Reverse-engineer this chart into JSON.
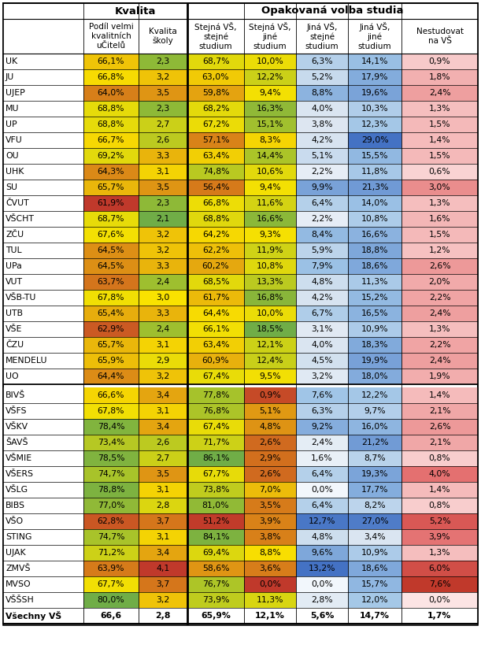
{
  "title_left": "Kvalita",
  "title_right": "Opakovaná volba studia",
  "col_headers": [
    "Podíl velmi\nkvalitních\nuČitelů",
    "Kvalita\nškoly",
    "Stejná VŠ,\nstejné\nstudium",
    "Stejná VŠ,\njiné\nstudium",
    "Jiná VŠ,\nstejné\nstudium",
    "Jiná VŠ,\njiné\nstudium",
    "Nestudovat\nna VŠ"
  ],
  "rows": [
    [
      "UK",
      "66,1%",
      "2,3",
      "68,7%",
      "10,0%",
      "6,3%",
      "14,1%",
      "0,9%"
    ],
    [
      "JU",
      "66,8%",
      "3,2",
      "63,0%",
      "12,2%",
      "5,2%",
      "17,9%",
      "1,8%"
    ],
    [
      "UJEP",
      "64,0%",
      "3,5",
      "59,8%",
      "9,4%",
      "8,8%",
      "19,6%",
      "2,4%"
    ],
    [
      "MU",
      "68,8%",
      "2,3",
      "68,2%",
      "16,3%",
      "4,0%",
      "10,3%",
      "1,3%"
    ],
    [
      "UP",
      "68,8%",
      "2,7",
      "67,2%",
      "15,1%",
      "3,8%",
      "12,3%",
      "1,5%"
    ],
    [
      "VFU",
      "66,7%",
      "2,6",
      "57,1%",
      "8,3%",
      "4,2%",
      "29,0%",
      "1,4%"
    ],
    [
      "OU",
      "69,2%",
      "3,3",
      "63,4%",
      "14,4%",
      "5,1%",
      "15,5%",
      "1,5%"
    ],
    [
      "UHK",
      "64,3%",
      "3,1",
      "74,8%",
      "10,6%",
      "2,2%",
      "11,8%",
      "0,6%"
    ],
    [
      "SU",
      "65,7%",
      "3,5",
      "56,4%",
      "9,4%",
      "9,9%",
      "21,3%",
      "3,0%"
    ],
    [
      "ČVUT",
      "61,9%",
      "2,3",
      "66,8%",
      "11,6%",
      "6,4%",
      "14,0%",
      "1,3%"
    ],
    [
      "VŠCHT",
      "68,7%",
      "2,1",
      "68,8%",
      "16,6%",
      "2,2%",
      "10,8%",
      "1,6%"
    ],
    [
      "ZČU",
      "67,6%",
      "3,2",
      "64,2%",
      "9,3%",
      "8,4%",
      "16,6%",
      "1,5%"
    ],
    [
      "TUL",
      "64,5%",
      "3,2",
      "62,2%",
      "11,9%",
      "5,9%",
      "18,8%",
      "1,2%"
    ],
    [
      "UPa",
      "64,5%",
      "3,3",
      "60,2%",
      "10,8%",
      "7,9%",
      "18,6%",
      "2,6%"
    ],
    [
      "VUT",
      "63,7%",
      "2,4",
      "68,5%",
      "13,3%",
      "4,8%",
      "11,3%",
      "2,0%"
    ],
    [
      "VŠB-TU",
      "67,8%",
      "3,0",
      "61,7%",
      "16,8%",
      "4,2%",
      "15,2%",
      "2,2%"
    ],
    [
      "UTB",
      "65,4%",
      "3,3",
      "64,4%",
      "10,0%",
      "6,7%",
      "16,5%",
      "2,4%"
    ],
    [
      "VŠE",
      "62,9%",
      "2,4",
      "66,1%",
      "18,5%",
      "3,1%",
      "10,9%",
      "1,3%"
    ],
    [
      "ČZU",
      "65,7%",
      "3,1",
      "63,4%",
      "12,1%",
      "4,0%",
      "18,3%",
      "2,2%"
    ],
    [
      "MENDELU",
      "65,9%",
      "2,9",
      "60,9%",
      "12,4%",
      "4,5%",
      "19,9%",
      "2,4%"
    ],
    [
      "UO",
      "64,4%",
      "3,2",
      "67,4%",
      "9,5%",
      "3,2%",
      "18,0%",
      "1,9%"
    ],
    [
      "BIVŠ",
      "66,6%",
      "3,4",
      "77,8%",
      "0,9%",
      "7,6%",
      "12,2%",
      "1,4%"
    ],
    [
      "VŠFS",
      "67,8%",
      "3,1",
      "76,8%",
      "5,1%",
      "6,3%",
      "9,7%",
      "2,1%"
    ],
    [
      "VŠKV",
      "78,4%",
      "3,4",
      "67,4%",
      "4,8%",
      "9,2%",
      "16,0%",
      "2,6%"
    ],
    [
      "ŠAVŠ",
      "73,4%",
      "2,6",
      "71,7%",
      "2,6%",
      "2,4%",
      "21,2%",
      "2,1%"
    ],
    [
      "VŠMIE",
      "78,5%",
      "2,7",
      "86,1%",
      "2,9%",
      "1,6%",
      "8,7%",
      "0,8%"
    ],
    [
      "VŠERS",
      "74,7%",
      "3,5",
      "67,7%",
      "2,6%",
      "6,4%",
      "19,3%",
      "4,0%"
    ],
    [
      "VŠLG",
      "78,8%",
      "3,1",
      "73,8%",
      "7,0%",
      "0,0%",
      "17,7%",
      "1,4%"
    ],
    [
      "BIBS",
      "77,0%",
      "2,8",
      "81,0%",
      "3,5%",
      "6,4%",
      "8,2%",
      "0,8%"
    ],
    [
      "VŠO",
      "62,8%",
      "3,7",
      "51,2%",
      "3,9%",
      "12,7%",
      "27,0%",
      "5,2%"
    ],
    [
      "STING",
      "74,7%",
      "3,1",
      "84,1%",
      "3,8%",
      "4,8%",
      "3,4%",
      "3,9%"
    ],
    [
      "UJAK",
      "71,2%",
      "3,4",
      "69,4%",
      "8,8%",
      "9,6%",
      "10,9%",
      "1,3%"
    ],
    [
      "ZMVŠ",
      "63,9%",
      "4,1",
      "58,6%",
      "3,6%",
      "13,2%",
      "18,6%",
      "6,0%"
    ],
    [
      "MVSO",
      "67,7%",
      "3,7",
      "76,7%",
      "0,0%",
      "0,0%",
      "15,7%",
      "7,6%"
    ],
    [
      "VŠŠSH",
      "80,0%",
      "3,2",
      "73,9%",
      "11,3%",
      "2,8%",
      "12,0%",
      "0,0%"
    ],
    [
      "Všechny VŠ",
      "66,6",
      "2,8",
      "65,9%",
      "12,1%",
      "5,6%",
      "14,7%",
      "1,7%"
    ]
  ],
  "col1_vals": [
    66.1,
    66.8,
    64.0,
    68.8,
    68.8,
    66.7,
    69.2,
    64.3,
    65.7,
    61.9,
    68.7,
    67.6,
    64.5,
    64.5,
    63.7,
    67.8,
    65.4,
    62.9,
    65.7,
    65.9,
    64.4,
    66.6,
    67.8,
    78.4,
    73.4,
    78.5,
    74.7,
    78.8,
    77.0,
    62.8,
    74.7,
    71.2,
    63.9,
    67.7,
    80.0,
    66.6
  ],
  "col2_vals": [
    2.3,
    3.2,
    3.5,
    2.3,
    2.7,
    2.6,
    3.3,
    3.1,
    3.5,
    2.3,
    2.1,
    3.2,
    3.2,
    3.3,
    2.4,
    3.0,
    3.3,
    2.4,
    3.1,
    2.9,
    3.2,
    3.4,
    3.1,
    3.4,
    2.6,
    2.7,
    3.5,
    3.1,
    2.8,
    3.7,
    3.1,
    3.4,
    4.1,
    3.7,
    3.2,
    2.8
  ],
  "col3_vals": [
    68.7,
    63.0,
    59.8,
    68.2,
    67.2,
    57.1,
    63.4,
    74.8,
    56.4,
    66.8,
    68.8,
    64.2,
    62.2,
    60.2,
    68.5,
    61.7,
    64.4,
    66.1,
    63.4,
    60.9,
    67.4,
    77.8,
    76.8,
    67.4,
    71.7,
    86.1,
    67.7,
    73.8,
    81.0,
    51.2,
    84.1,
    69.4,
    58.6,
    76.7,
    73.9,
    65.9
  ],
  "col4_vals": [
    10.0,
    12.2,
    9.4,
    16.3,
    15.1,
    8.3,
    14.4,
    10.6,
    9.4,
    11.6,
    16.6,
    9.3,
    11.9,
    10.8,
    13.3,
    16.8,
    10.0,
    18.5,
    12.1,
    12.4,
    9.5,
    0.9,
    5.1,
    4.8,
    2.6,
    2.9,
    2.6,
    7.0,
    3.5,
    3.9,
    3.8,
    8.8,
    3.6,
    0.0,
    11.3,
    12.1
  ],
  "col5_vals": [
    6.3,
    5.2,
    8.8,
    4.0,
    3.8,
    4.2,
    5.1,
    2.2,
    9.9,
    6.4,
    2.2,
    8.4,
    5.9,
    7.9,
    4.8,
    4.2,
    6.7,
    3.1,
    4.0,
    4.5,
    3.2,
    7.6,
    6.3,
    9.2,
    2.4,
    1.6,
    6.4,
    0.0,
    6.4,
    12.7,
    4.8,
    9.6,
    13.2,
    0.0,
    2.8,
    5.6
  ],
  "col6_vals": [
    14.1,
    17.9,
    19.6,
    10.3,
    12.3,
    29.0,
    15.5,
    11.8,
    21.3,
    14.0,
    10.8,
    16.6,
    18.8,
    18.6,
    11.3,
    15.2,
    16.5,
    10.9,
    18.3,
    19.9,
    18.0,
    12.2,
    9.7,
    16.0,
    21.2,
    8.7,
    19.3,
    17.7,
    8.2,
    27.0,
    3.4,
    10.9,
    18.6,
    15.7,
    12.0,
    14.7
  ],
  "col7_vals": [
    0.9,
    1.8,
    2.4,
    1.3,
    1.5,
    1.4,
    1.5,
    0.6,
    3.0,
    1.3,
    1.6,
    1.5,
    1.2,
    2.6,
    2.0,
    2.2,
    2.4,
    1.3,
    2.2,
    2.4,
    1.9,
    1.4,
    2.1,
    2.6,
    2.1,
    0.8,
    4.0,
    1.4,
    0.8,
    5.2,
    3.9,
    1.3,
    6.0,
    7.6,
    0.0,
    1.7
  ],
  "bg_white": "#ffffff",
  "line_color": "#000000",
  "footer_bg": "#ffffff"
}
